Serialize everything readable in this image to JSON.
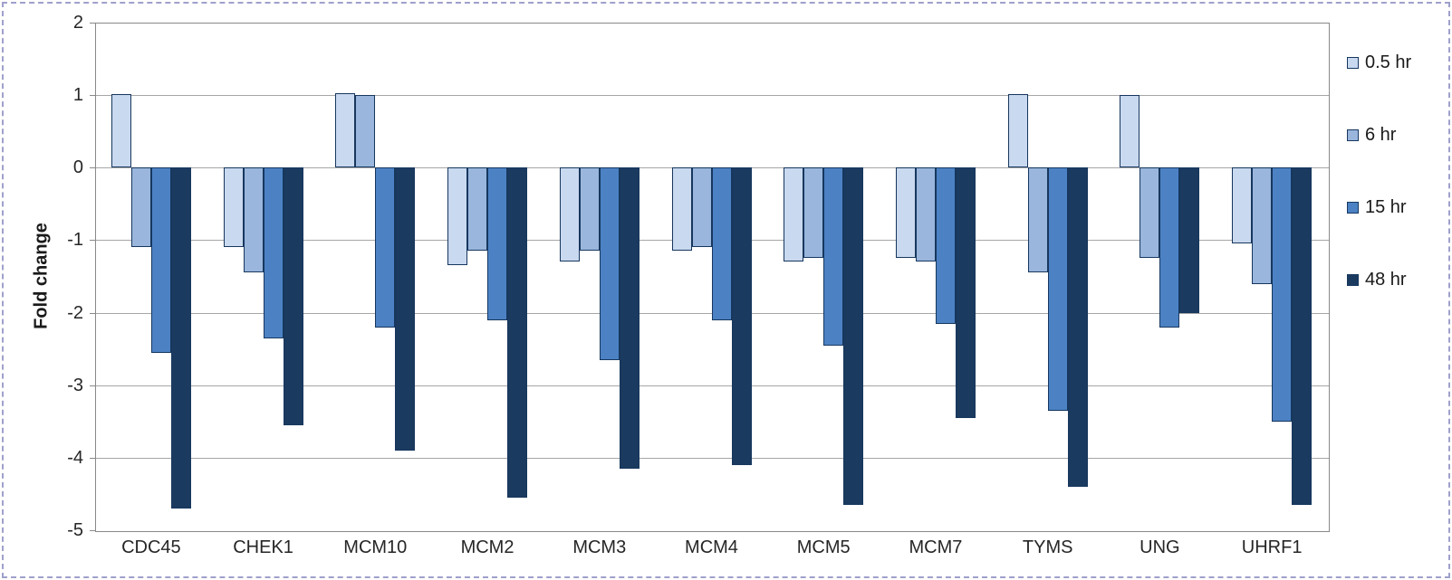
{
  "chart_data": {
    "type": "bar",
    "title": "",
    "xlabel": "",
    "ylabel": "Fold change",
    "ylim": [
      -5,
      2
    ],
    "yticks": [
      2,
      1,
      0,
      -1,
      -2,
      -3,
      -4,
      -5
    ],
    "grid": true,
    "legend_position": "right",
    "categories": [
      "CDC45",
      "CHEK1",
      "MCM10",
      "MCM2",
      "MCM3",
      "MCM4",
      "MCM5",
      "MCM7",
      "TYMS",
      "UNG",
      "UHRF1"
    ],
    "series": [
      {
        "name": "0.5 hr",
        "color": "#c9d9ef",
        "values": [
          1.02,
          -1.1,
          1.03,
          -1.35,
          -1.3,
          -1.15,
          -1.3,
          -1.25,
          1.02,
          1.0,
          -1.05
        ]
      },
      {
        "name": "6 hr",
        "color": "#9ab6dc",
        "values": [
          -1.1,
          -1.45,
          1.0,
          -1.15,
          -1.15,
          -1.1,
          -1.25,
          -1.3,
          -1.45,
          -1.25,
          -1.6
        ]
      },
      {
        "name": "15 hr",
        "color": "#4c82c4",
        "values": [
          -2.55,
          -2.35,
          -2.2,
          -2.1,
          -2.65,
          -2.1,
          -2.45,
          -2.15,
          -3.35,
          -2.2,
          -3.5
        ]
      },
      {
        "name": "48 hr",
        "color": "#1b3a5f",
        "values": [
          -4.7,
          -3.55,
          -3.9,
          -4.55,
          -4.15,
          -4.1,
          -4.65,
          -3.45,
          -4.4,
          -2.0,
          -4.65
        ]
      }
    ],
    "colors": {
      "gridline": "#a6a6a6",
      "plot_border": "#898989",
      "bar_border": "#17375e",
      "text": "#262626",
      "outer_border": "#a0a0cc"
    }
  }
}
